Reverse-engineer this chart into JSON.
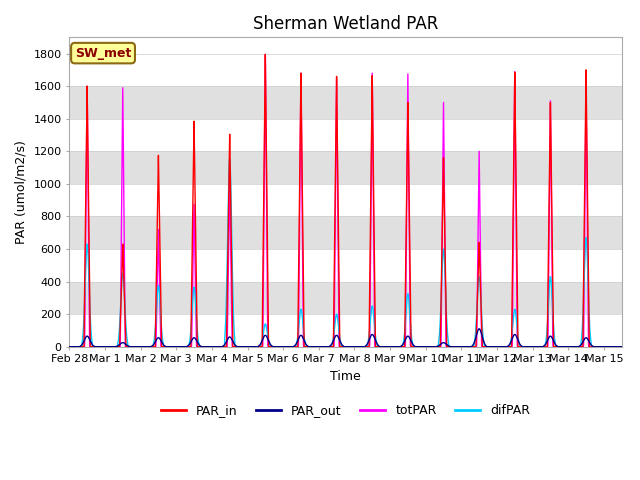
{
  "title": "Sherman Wetland PAR",
  "ylabel": "PAR (umol/m2/s)",
  "xlabel": "Time",
  "ylim": [
    0,
    1900
  ],
  "legend_labels": [
    "PAR_in",
    "PAR_out",
    "totPAR",
    "difPAR"
  ],
  "colors": {
    "PAR_in": "#ff0000",
    "PAR_out": "#00008b",
    "totPAR": "#ff00ff",
    "difPAR": "#00ccff"
  },
  "station_label": "SW_met",
  "station_label_facecolor": "#ffff99",
  "station_label_edgecolor": "#8b6914",
  "background_color": "#ffffff",
  "band_color": "#e0e0e0",
  "title_fontsize": 12,
  "axis_label_fontsize": 9,
  "tick_label_fontsize": 8,
  "legend_fontsize": 9,
  "xtick_labels": [
    "Feb 28",
    "Mar 1",
    "Mar 2",
    "Mar 3",
    "Mar 4",
    "Mar 5",
    "Mar 6",
    "Mar 7",
    "Mar 8",
    "Mar 9",
    "Mar 10",
    "Mar 11",
    "Mar 12",
    "Mar 13",
    "Mar 14",
    "Mar 15"
  ],
  "yticks": [
    0,
    200,
    400,
    600,
    800,
    1000,
    1200,
    1400,
    1600,
    1800
  ],
  "daily_peaks": {
    "PAR_in": [
      1600,
      630,
      1175,
      1385,
      1305,
      1795,
      1680,
      1660,
      1665,
      1500,
      1160,
      640,
      1685,
      1500,
      1700,
      0
    ],
    "PAR_out": [
      65,
      25,
      55,
      55,
      60,
      70,
      70,
      70,
      75,
      65,
      25,
      110,
      75,
      65,
      55,
      0
    ],
    "totPAR": [
      1600,
      1590,
      720,
      875,
      1045,
      1795,
      1680,
      1640,
      1680,
      1675,
      1500,
      1200,
      1690,
      1510,
      1590,
      0
    ],
    "difPAR": [
      630,
      450,
      375,
      365,
      1155,
      140,
      230,
      200,
      250,
      325,
      600,
      430,
      230,
      430,
      670,
      0
    ]
  }
}
